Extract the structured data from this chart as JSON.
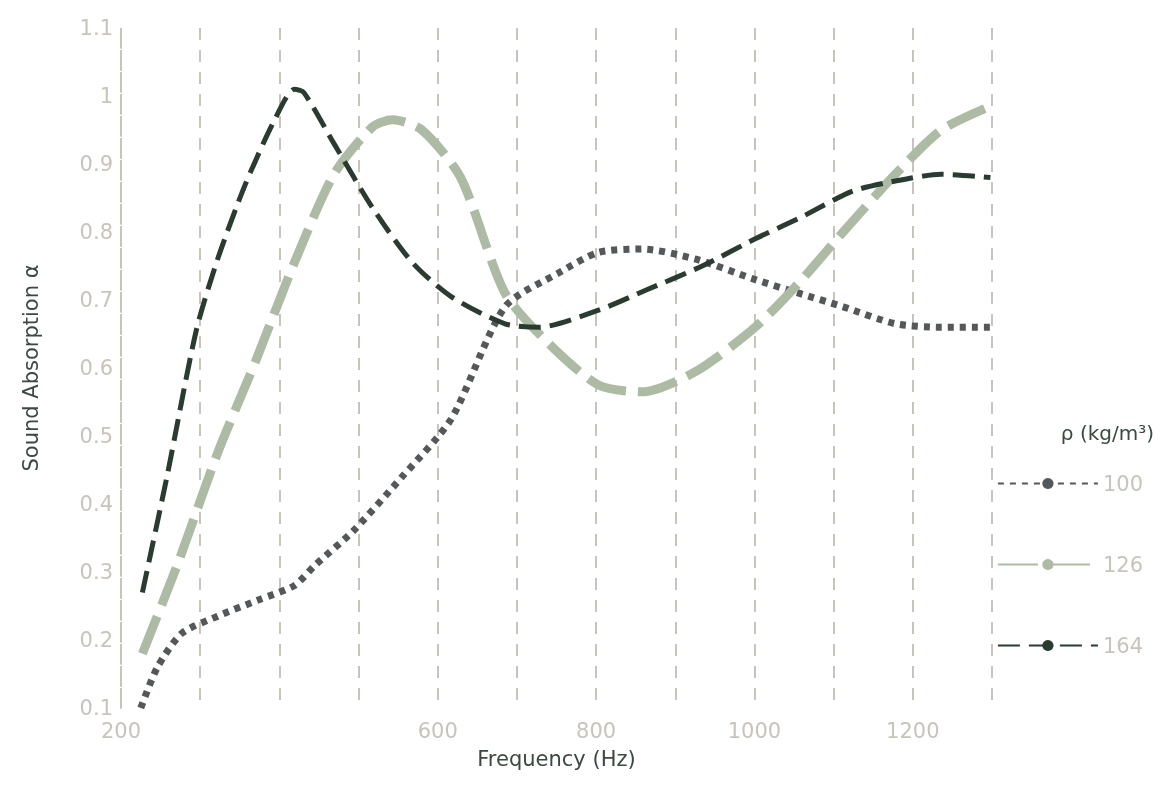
{
  "chart_data": {
    "type": "line",
    "xlabel": "Frequency (Hz)",
    "ylabel": "Sound Absorption α",
    "legend_title": "ρ (kg/m³)",
    "xlim": [
      200,
      1300
    ],
    "xticks": [
      200,
      {
        "value": 300,
        "label": null
      },
      {
        "value": 400,
        "label": null
      },
      {
        "value": 500,
        "label": null
      },
      600,
      {
        "value": 700,
        "label": null
      },
      800,
      {
        "value": 900,
        "label": null
      },
      1000,
      {
        "value": 1100,
        "label": null
      },
      1200,
      {
        "value": 1300,
        "label": null
      }
    ],
    "ylim": [
      0.1,
      1.1
    ],
    "yticks": [
      0.1,
      0.2,
      0.3,
      0.4,
      0.5,
      0.6,
      0.7,
      0.8,
      0.9,
      1,
      1.1
    ],
    "grid": "x",
    "legend": "right",
    "marker": "none",
    "series": [
      {
        "name": "100",
        "color": "#55585a",
        "line_style": "dotted",
        "x": [
          225,
          246,
          277,
          322,
          376,
          419,
          445,
          493,
          555,
          617,
          685,
          753,
          803,
          858,
          926,
          1001,
          1056,
          1112,
          1178,
          1236,
          1298
        ],
        "values": [
          0.1,
          0.16,
          0.21,
          0.235,
          0.26,
          0.28,
          0.31,
          0.36,
          0.44,
          0.525,
          0.69,
          0.74,
          0.77,
          0.775,
          0.76,
          0.73,
          0.71,
          0.69,
          0.665,
          0.66,
          0.66
        ]
      },
      {
        "name": "126",
        "color": "#adbba4",
        "line_style": "dashed",
        "x": [
          227,
          271,
          322,
          370,
          419,
          469,
          518,
          543,
          580,
          629,
          685,
          741,
          803,
          858,
          926,
          1001,
          1056,
          1112,
          1178,
          1236,
          1298
        ],
        "values": [
          0.18,
          0.31,
          0.475,
          0.61,
          0.755,
          0.885,
          0.955,
          0.965,
          0.95,
          0.88,
          0.71,
          0.635,
          0.575,
          0.565,
          0.595,
          0.66,
          0.725,
          0.8,
          0.885,
          0.95,
          0.985
        ]
      },
      {
        "name": "164",
        "color": "#2a3b30",
        "line_style": "dashed",
        "x": [
          227,
          258,
          295,
          322,
          357,
          394,
          419,
          431,
          469,
          518,
          568,
          617,
          685,
          728,
          803,
          864,
          934,
          1001,
          1056,
          1124,
          1178,
          1236,
          1298
        ],
        "values": [
          0.27,
          0.44,
          0.655,
          0.76,
          0.87,
          0.965,
          1.01,
          1.005,
          0.93,
          0.835,
          0.755,
          0.705,
          0.665,
          0.66,
          0.685,
          0.715,
          0.75,
          0.79,
          0.82,
          0.86,
          0.875,
          0.885,
          0.88
        ]
      }
    ]
  }
}
